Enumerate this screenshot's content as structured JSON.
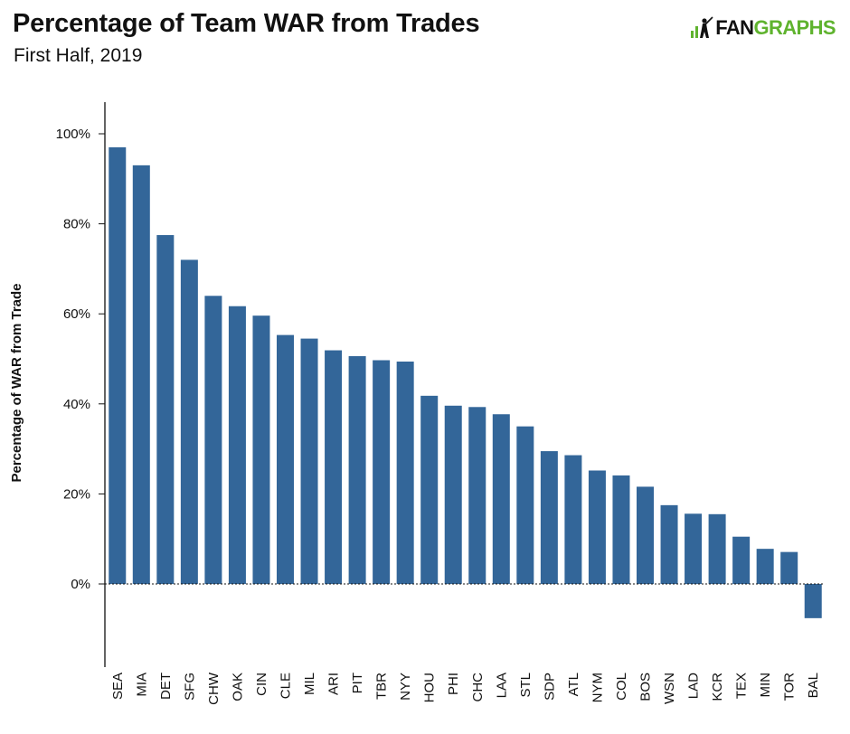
{
  "header": {
    "title": "Percentage of Team WAR from Trades",
    "subtitle": "First Half, 2019"
  },
  "logo": {
    "text_fan": "FAN",
    "text_graphs": "GRAPHS",
    "icon": "batter-silhouette-icon",
    "color_green": "#5fb32e"
  },
  "chart_data": {
    "type": "bar",
    "title": "Percentage of Team WAR from Trades",
    "subtitle": "First Half, 2019",
    "xlabel": "",
    "ylabel": "Percentage of WAR from Trade",
    "ylim": [
      -0.18,
      1.07
    ],
    "yticks": [
      0,
      0.2,
      0.4,
      0.6,
      0.8,
      1.0
    ],
    "ytick_labels": [
      "0%",
      "20%",
      "40%",
      "60%",
      "80%",
      "100%"
    ],
    "bar_color": "#336699",
    "categories": [
      "SEA",
      "MIA",
      "DET",
      "SFG",
      "CHW",
      "OAK",
      "CIN",
      "CLE",
      "MIL",
      "ARI",
      "PIT",
      "TBR",
      "NYY",
      "HOU",
      "PHI",
      "CHC",
      "LAA",
      "STL",
      "SDP",
      "ATL",
      "NYM",
      "COL",
      "BOS",
      "WSN",
      "LAD",
      "KCR",
      "TEX",
      "MIN",
      "TOR",
      "BAL"
    ],
    "values": [
      0.97,
      0.93,
      0.775,
      0.72,
      0.64,
      0.617,
      0.596,
      0.553,
      0.545,
      0.519,
      0.506,
      0.497,
      0.494,
      0.418,
      0.396,
      0.393,
      0.377,
      0.35,
      0.295,
      0.286,
      0.252,
      0.241,
      0.216,
      0.175,
      0.156,
      0.155,
      0.105,
      0.078,
      0.071,
      -0.076
    ]
  }
}
